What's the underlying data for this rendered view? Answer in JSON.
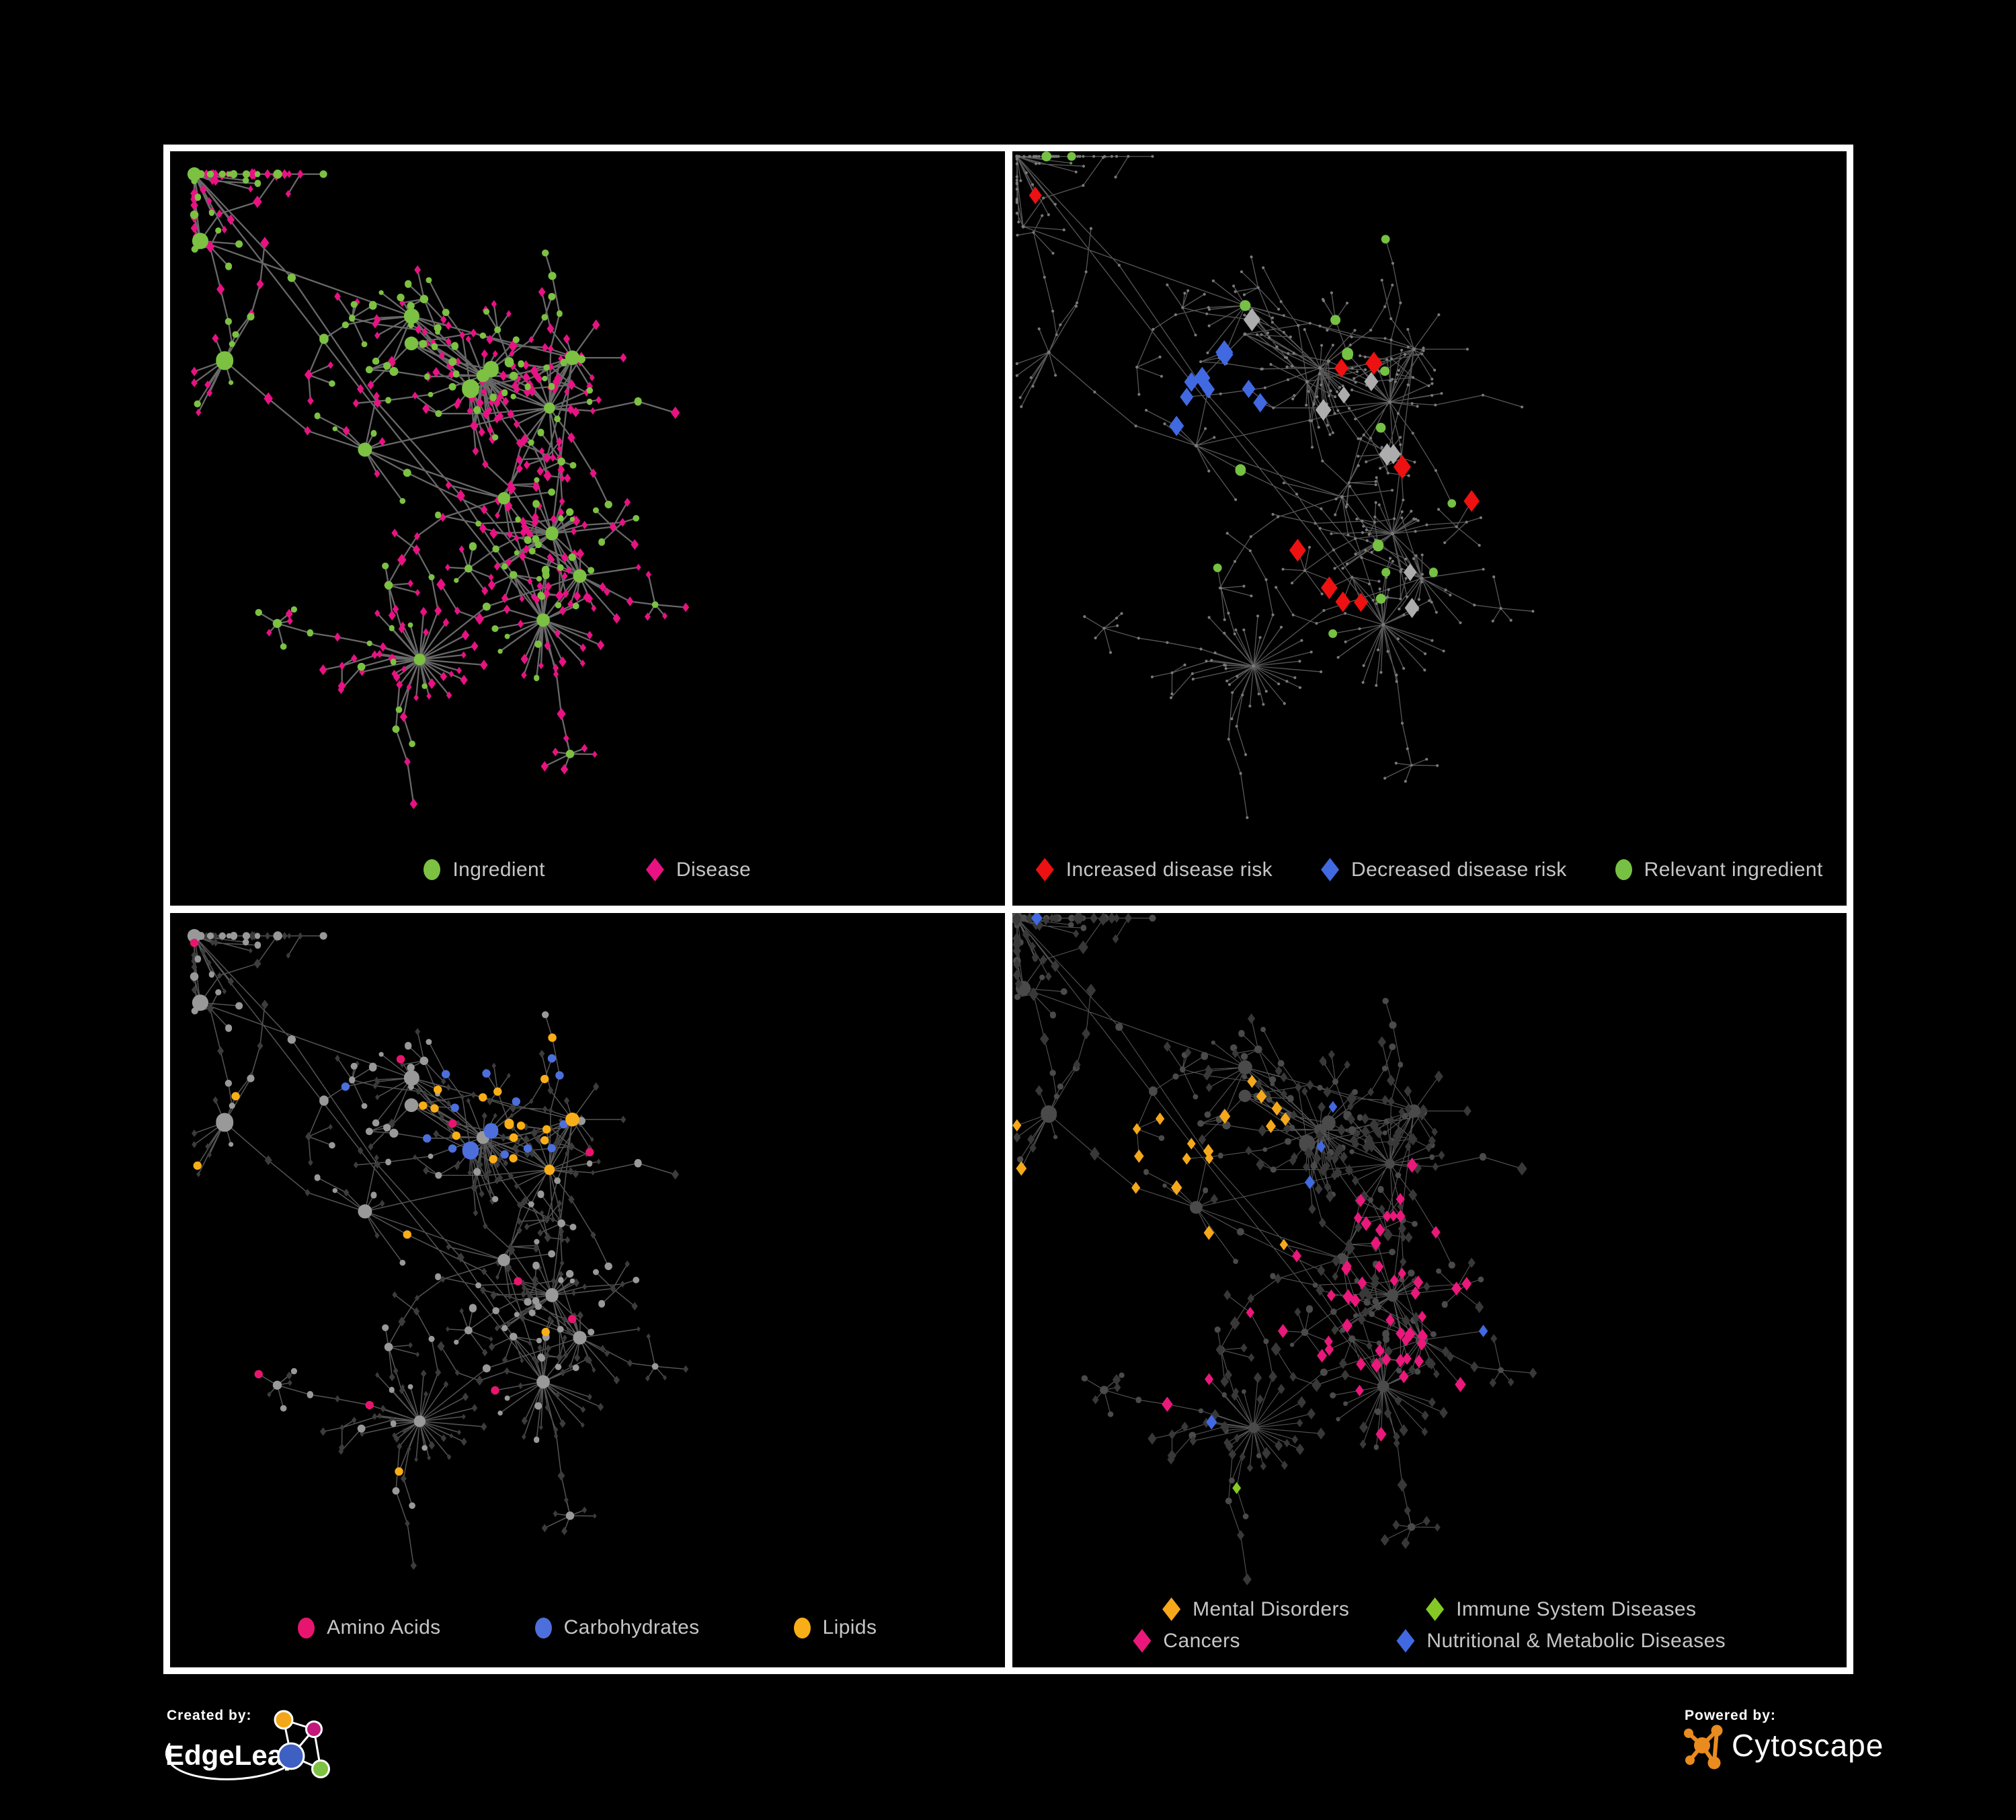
{
  "figure": {
    "background": "#000000",
    "frame_color": "#ffffff"
  },
  "network_params": {
    "topology_seed": 1337,
    "hub_count": 17
  },
  "panels": [
    {
      "id": "ingredient-disease",
      "highlight_seed": 1337,
      "spread": 1.0,
      "colors": {
        "ingredient": "#7CC142",
        "disease": "#E81283",
        "edge": "#6E6E6E"
      },
      "legend_rows": [
        [
          {
            "label": "Ingredient",
            "shape": "circle",
            "color": "#7CC142"
          },
          {
            "label": "Disease",
            "shape": "diamond",
            "color": "#E81283"
          }
        ]
      ]
    },
    {
      "id": "disease-risk",
      "highlight_seed": 9021,
      "spread": 1.05,
      "colors": {
        "increased": "#EE1111",
        "decreased": "#4169E1",
        "relevant": "#76C043",
        "neutral": "#ADADAD",
        "base": "#7A7A7A",
        "edge": "#666666"
      },
      "legend_rows": [
        [
          {
            "label": "Increased disease risk",
            "shape": "diamond",
            "color": "#EE1111"
          },
          {
            "label": "Decreased disease risk",
            "shape": "diamond",
            "color": "#4169E1"
          },
          {
            "label": "Relevant ingredient",
            "shape": "circle",
            "color": "#76C043"
          }
        ]
      ]
    },
    {
      "id": "macronutrient-classes",
      "highlight_seed": 4025,
      "spread": 1.0,
      "colors": {
        "amino": "#E8156E",
        "carbs": "#4C6FDC",
        "lipids": "#F9AE17",
        "ingredient_base": "#999999",
        "disease_base": "#3C3C3C",
        "edge": "#707070"
      },
      "legend_rows": [
        [
          {
            "label": "Amino Acids",
            "shape": "circle",
            "color": "#E8156E"
          },
          {
            "label": "Carbohydrates",
            "shape": "circle",
            "color": "#4C6FDC"
          },
          {
            "label": "Lipids",
            "shape": "circle",
            "color": "#F9AE17"
          }
        ]
      ]
    },
    {
      "id": "disease-categories",
      "highlight_seed": 6037,
      "spread": 1.05,
      "colors": {
        "mental": "#F5A81B",
        "immune": "#84C926",
        "cancers": "#EA187B",
        "nutritional": "#4169E1",
        "disease_base": "#383838",
        "ingredient_base": "#4A4A4A",
        "edge": "#777777"
      },
      "legend_rows": [
        [
          {
            "label": "Mental Disorders",
            "shape": "diamond",
            "color": "#F5A81B"
          },
          {
            "label": "Immune System Diseases",
            "shape": "diamond",
            "color": "#84C926"
          }
        ],
        [
          {
            "label": "Cancers",
            "shape": "diamond",
            "color": "#EA187B"
          },
          {
            "label": "Nutritional & Metabolic Diseases",
            "shape": "diamond",
            "color": "#4169E1"
          }
        ]
      ]
    }
  ],
  "footer": {
    "created_by": {
      "label": "Created by:",
      "brand": "EdgeLeap"
    },
    "powered_by": {
      "label": "Powered by:",
      "brand": "Cytoscape",
      "accent": "#E98B1F"
    },
    "edgeleap_colors": {
      "orange": "#F2A71B",
      "magenta": "#C2187B",
      "blue": "#3E60C2",
      "green": "#7DC242"
    }
  }
}
